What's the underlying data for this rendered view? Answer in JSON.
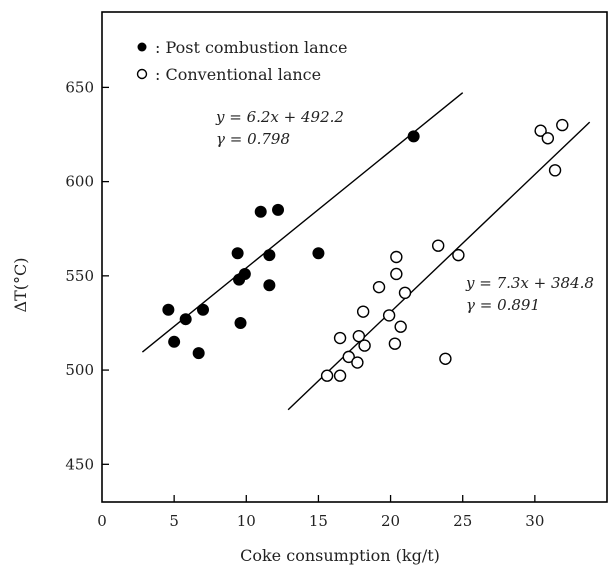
{
  "chart_data": {
    "type": "scatter",
    "xlabel": "Coke consumption (kg/t)",
    "ylabel": "ΔT(°C)",
    "xlim": [
      0,
      35
    ],
    "ylim": [
      430,
      690
    ],
    "xticks": [
      "0",
      "5",
      "10",
      "15",
      "20",
      "25",
      "30"
    ],
    "xtick_values": [
      0,
      5,
      10,
      15,
      20,
      25,
      30
    ],
    "yticks": [
      "450",
      "500",
      "550",
      "600",
      "650"
    ],
    "ytick_values": [
      450,
      500,
      550,
      600,
      650
    ],
    "grid": false,
    "legend_position": "top-left",
    "series": [
      {
        "name": ": Post combustion lance",
        "marker": "filled-circle",
        "color": "#000000",
        "points": [
          [
            4.6,
            532
          ],
          [
            5.0,
            515
          ],
          [
            5.8,
            527
          ],
          [
            6.7,
            509
          ],
          [
            7.0,
            532
          ],
          [
            9.4,
            562
          ],
          [
            9.5,
            548
          ],
          [
            9.6,
            525
          ],
          [
            9.9,
            551
          ],
          [
            11.0,
            584
          ],
          [
            11.6,
            561
          ],
          [
            11.6,
            545
          ],
          [
            12.2,
            585
          ],
          [
            15.0,
            562
          ],
          [
            21.6,
            624
          ]
        ],
        "fit": {
          "x": [
            2.8,
            25.0
          ],
          "label_eq": "y = 6.2x + 492.2",
          "label_r": "γ = 0.798"
        }
      },
      {
        "name": ": Conventional lance",
        "marker": "open-circle",
        "color": "#000000",
        "points": [
          [
            15.6,
            497
          ],
          [
            16.5,
            497
          ],
          [
            16.5,
            517
          ],
          [
            17.1,
            507
          ],
          [
            17.7,
            504
          ],
          [
            17.8,
            518
          ],
          [
            18.1,
            531
          ],
          [
            18.2,
            513
          ],
          [
            19.2,
            544
          ],
          [
            19.9,
            529
          ],
          [
            20.3,
            514
          ],
          [
            20.4,
            551
          ],
          [
            20.4,
            560
          ],
          [
            20.7,
            523
          ],
          [
            21.0,
            541
          ],
          [
            23.3,
            566
          ],
          [
            23.8,
            506
          ],
          [
            24.7,
            561
          ],
          [
            30.4,
            627
          ],
          [
            30.9,
            623
          ],
          [
            31.4,
            606
          ],
          [
            31.9,
            630
          ]
        ],
        "fit": {
          "x": [
            12.9,
            33.8
          ],
          "label_eq": "y = 7.3x + 384.8",
          "label_r": "γ = 0.891"
        }
      }
    ]
  }
}
